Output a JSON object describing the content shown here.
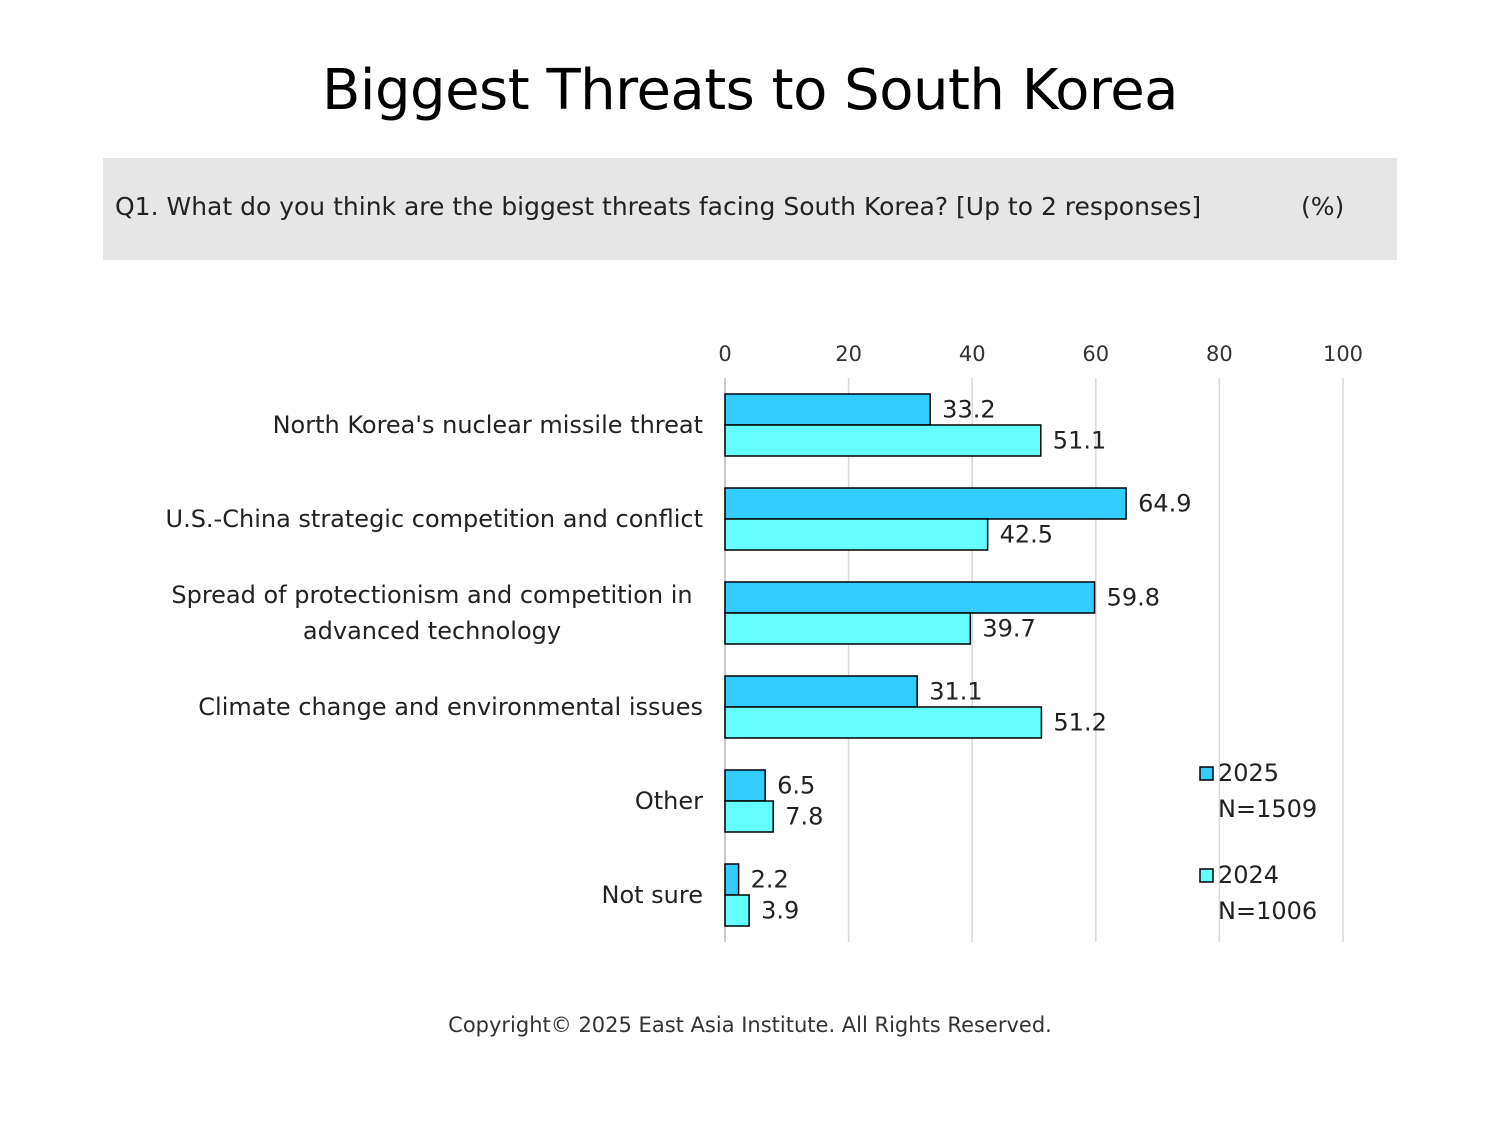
{
  "title": "Biggest Threats to South Korea",
  "question": "Q1. What do you think are the biggest threats facing South Korea? [Up to 2 responses]",
  "unit": "(%)",
  "copyright": "Copyright© 2025 East Asia Institute. All Rights Reserved.",
  "colors": {
    "series_2025": "#33ccff",
    "series_2024": "#66ffff",
    "grid": "#d9d9d9",
    "bar_stroke": "#000000"
  },
  "chart_data": {
    "type": "bar",
    "orientation": "horizontal",
    "categories": [
      [
        "North Korea's nuclear missile threat"
      ],
      [
        "U.S.-China strategic competition and conflict"
      ],
      [
        "Spread of protectionism and competition in",
        "advanced technology"
      ],
      [
        "Climate change and environmental issues"
      ],
      [
        "Other"
      ],
      [
        "Not sure"
      ]
    ],
    "series": [
      {
        "name": "2025",
        "n_label": "N=1509",
        "values": [
          33.2,
          64.9,
          59.8,
          31.1,
          6.5,
          2.2
        ]
      },
      {
        "name": "2024",
        "n_label": "N=1006",
        "values": [
          51.1,
          42.5,
          39.7,
          51.2,
          7.8,
          3.9
        ]
      }
    ],
    "xlim": [
      0,
      100
    ],
    "xticks": [
      0,
      20,
      40,
      60,
      80,
      100
    ],
    "grid": true,
    "legend_position": "bottom-right",
    "data_labels": true
  }
}
